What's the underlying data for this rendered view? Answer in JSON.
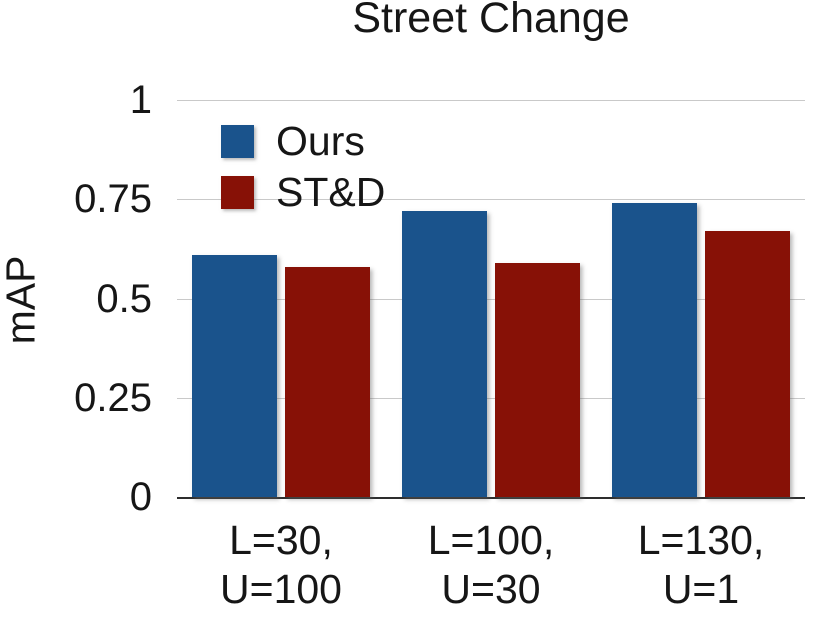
{
  "chart_data": {
    "type": "bar",
    "title": "Street Change",
    "xlabel": "",
    "ylabel": "mAP",
    "ylim": [
      0,
      1
    ],
    "y_tick_labels": [
      "1",
      "0.75",
      "0.5",
      "0.25",
      "0"
    ],
    "categories": [
      "L=30, U=100",
      "L=100, U=30",
      "L=130, U=1"
    ],
    "category_lines": [
      [
        "L=30,",
        "U=100"
      ],
      [
        "L=100,",
        "U=30"
      ],
      [
        "L=130,",
        "U=1"
      ]
    ],
    "series": [
      {
        "name": "Ours",
        "color": "#1a538c",
        "values": [
          0.61,
          0.72,
          0.74
        ]
      },
      {
        "name": "ST&D",
        "color": "#871106",
        "values": [
          0.58,
          0.59,
          0.67
        ]
      }
    ],
    "legend_position": "inside-top-left",
    "grid": "horizontal"
  },
  "colors": {
    "background": "#ffffff",
    "gridline": "#c9c9c9",
    "axis_line": "#2d2d2d",
    "text": "#161616",
    "bar_blue": "#1a538c",
    "bar_red": "#871106"
  }
}
